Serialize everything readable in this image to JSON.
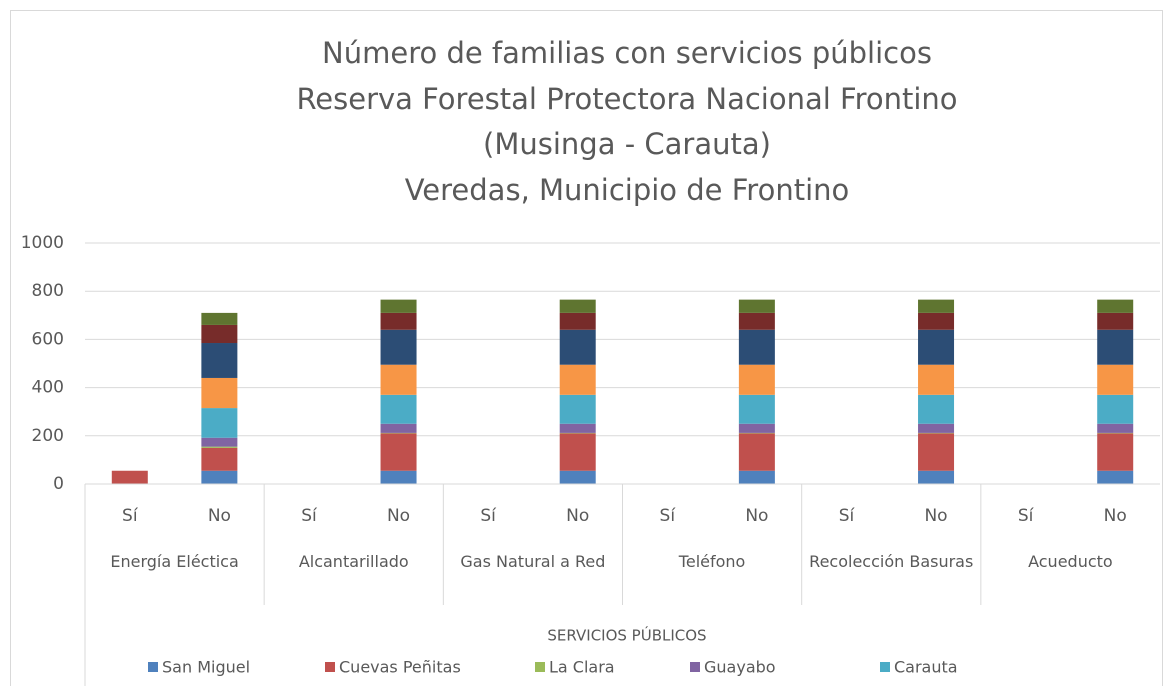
{
  "chart_data": {
    "type": "stacked_bar",
    "title": [
      "Número de familias con servicios públicos",
      "Reserva Forestal Protectora Nacional Frontino",
      "(Musinga - Carauta)",
      "Veredas, Municipio de Frontino"
    ],
    "x_label": "SERVICIOS PÚBLICOS",
    "categories": [
      "Sí",
      "No",
      "Sí",
      "No",
      "Sí",
      "No",
      "Sí",
      "No",
      "Sí",
      "No",
      "Sí",
      "No"
    ],
    "groups": [
      "Energía Eléctica",
      "Alcantarillado",
      "Gas Natural a Red",
      "Teléfono",
      "Recolección Basuras",
      "Acueducto"
    ],
    "series": [
      {
        "name": "San Miguel",
        "color": "#4f81bd",
        "values": [
          0,
          55,
          0,
          55,
          0,
          55,
          0,
          55,
          0,
          55,
          0,
          55
        ]
      },
      {
        "name": "Cuevas Peñitas",
        "color": "#c0504d",
        "values": [
          55,
          95,
          0,
          155,
          0,
          155,
          0,
          155,
          0,
          155,
          0,
          155
        ]
      },
      {
        "name": "La Clara",
        "color": "#9bbb59",
        "values": [
          0,
          5,
          0,
          2,
          0,
          2,
          0,
          2,
          0,
          2,
          0,
          2
        ]
      },
      {
        "name": "Guayabo",
        "color": "#8064a2",
        "values": [
          0,
          37,
          0,
          38,
          0,
          38,
          0,
          38,
          0,
          38,
          0,
          38
        ]
      },
      {
        "name": "Carauta",
        "color": "#4bacc6",
        "values": [
          0,
          123,
          0,
          120,
          0,
          120,
          0,
          120,
          0,
          120,
          0,
          120
        ]
      },
      {
        "color": "#f79646",
        "values": [
          0,
          125,
          0,
          125,
          0,
          125,
          0,
          125,
          0,
          125,
          0,
          125
        ]
      },
      {
        "color": "#2c4d75",
        "values": [
          0,
          145,
          0,
          145,
          0,
          145,
          0,
          145,
          0,
          145,
          0,
          145
        ]
      },
      {
        "color": "#772c2a",
        "values": [
          0,
          75,
          0,
          70,
          0,
          70,
          0,
          70,
          0,
          70,
          0,
          70
        ]
      },
      {
        "color": "#5f7530",
        "values": [
          0,
          50,
          0,
          55,
          0,
          55,
          0,
          55,
          0,
          55,
          0,
          55
        ]
      }
    ],
    "ylim": [
      0,
      1000
    ],
    "yticks": [
      0,
      200,
      400,
      600,
      800,
      1000
    ],
    "grid": true
  }
}
